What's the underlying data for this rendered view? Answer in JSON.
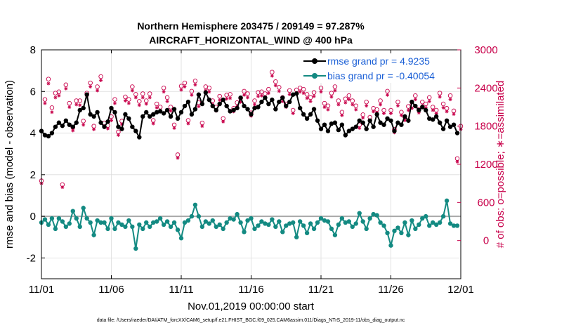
{
  "chart_data": {
    "type": "line",
    "title_line1": "Northern Hemisphere 203475 / 209149 = 97.287%",
    "title_line2": "AIRCRAFT_HORIZONTAL_WIND @ 400 hPa",
    "xlabel": "Nov.01,2019 00:00:00 start",
    "ylabel_left": "rmse and bias (model - observation)",
    "ylabel_right": "# of obs: o=possible; ∗=assimilated",
    "xlim": [
      0,
      30
    ],
    "ylim_left": [
      -3,
      8
    ],
    "ylim_right": [
      -600,
      3000
    ],
    "x_ticks": [
      {
        "value": 0,
        "label": "11/01"
      },
      {
        "value": 5,
        "label": "11/06"
      },
      {
        "value": 10,
        "label": "11/11"
      },
      {
        "value": 15,
        "label": "11/16"
      },
      {
        "value": 20,
        "label": "11/21"
      },
      {
        "value": 25,
        "label": "11/26"
      },
      {
        "value": 30,
        "label": "12/01"
      }
    ],
    "y_ticks_left": [
      -2,
      0,
      2,
      4,
      6,
      8
    ],
    "y_ticks_right": [
      0,
      600,
      1200,
      1800,
      2400,
      3000
    ],
    "footer": "data file: /Users/raeder/DAI/ATM_forcXX/CAM6_setup/f.e21.FHIST_BGC.f09_025.CAM6assim.011/Diags_NTrS_2019-11/obs_diag_output.nc",
    "colors": {
      "rmse": "#000000",
      "bias": "#138a82",
      "obs": "#c8004a",
      "zero_line": "#a9a9a9",
      "grid": "#dcdcdc",
      "legend_text": "#1a5fd6"
    },
    "series": [
      {
        "name": "rmse grand pr = 4.9235",
        "x": [
          0.0,
          0.25,
          0.5,
          0.75,
          1.0,
          1.25,
          1.5,
          1.75,
          2.0,
          2.25,
          2.5,
          2.75,
          3.0,
          3.25,
          3.5,
          3.75,
          4.0,
          4.25,
          4.5,
          4.75,
          5.0,
          5.25,
          5.5,
          5.75,
          6.0,
          6.25,
          6.5,
          6.75,
          7.0,
          7.25,
          7.5,
          7.75,
          8.0,
          8.25,
          8.5,
          8.75,
          9.0,
          9.25,
          9.5,
          9.75,
          10.0,
          10.25,
          10.5,
          10.75,
          11.0,
          11.25,
          11.5,
          11.75,
          12.0,
          12.25,
          12.5,
          12.75,
          13.0,
          13.25,
          13.5,
          13.75,
          14.0,
          14.25,
          14.5,
          14.75,
          15.0,
          15.25,
          15.5,
          15.75,
          16.0,
          16.25,
          16.5,
          16.75,
          17.0,
          17.25,
          17.5,
          17.75,
          18.0,
          18.25,
          18.5,
          18.75,
          19.0,
          19.25,
          19.5,
          19.75,
          20.0,
          20.25,
          20.5,
          20.75,
          21.0,
          21.25,
          21.5,
          21.75,
          22.0,
          22.25,
          22.5,
          22.75,
          23.0,
          23.25,
          23.5,
          23.75,
          24.0,
          24.25,
          24.5,
          24.75,
          25.0,
          25.25,
          25.5,
          25.75,
          26.0,
          26.25,
          26.5,
          26.75,
          27.0,
          27.25,
          27.5,
          27.75,
          28.0,
          28.25,
          28.5,
          28.75,
          29.0,
          29.25,
          29.5,
          29.75
        ],
        "values": [
          4.1,
          3.9,
          3.85,
          4.0,
          4.3,
          4.5,
          4.35,
          4.6,
          4.4,
          4.3,
          4.5,
          5.1,
          5.2,
          5.85,
          4.9,
          4.8,
          5.0,
          4.5,
          4.3,
          4.55,
          5.2,
          5.0,
          4.3,
          4.2,
          4.9,
          4.7,
          4.3,
          4.1,
          3.8,
          4.8,
          5.0,
          4.8,
          4.9,
          5.0,
          5.05,
          4.95,
          5.1,
          4.8,
          5.15,
          4.7,
          5.0,
          5.3,
          5.5,
          4.9,
          5.15,
          5.85,
          5.4,
          5.95,
          5.6,
          5.3,
          5.1,
          5.4,
          5.6,
          5.3,
          5.05,
          5.1,
          5.2,
          5.7,
          5.3,
          5.15,
          4.9,
          5.2,
          5.25,
          5.5,
          5.7,
          5.4,
          5.6,
          5.15,
          5.5,
          5.7,
          5.3,
          5.5,
          5.85,
          5.9,
          5.2,
          4.9,
          4.7,
          4.9,
          5.15,
          4.6,
          4.2,
          4.4,
          4.1,
          4.45,
          4.5,
          4.15,
          4.4,
          3.9,
          4.1,
          4.2,
          4.3,
          4.6,
          4.5,
          4.2,
          4.6,
          4.3,
          4.9,
          4.5,
          4.4,
          4.7,
          4.6,
          4.1,
          4.5,
          4.4,
          4.8,
          4.6,
          5.5,
          5.3,
          5.1,
          5.25,
          5.1,
          4.7,
          4.65,
          4.8,
          4.5,
          4.2,
          4.6,
          4.3,
          4.4,
          4.0
        ]
      },
      {
        "name": "bias grand pr = -0.40054",
        "x": [
          0.0,
          0.25,
          0.5,
          0.75,
          1.0,
          1.25,
          1.5,
          1.75,
          2.0,
          2.25,
          2.5,
          2.75,
          3.0,
          3.25,
          3.5,
          3.75,
          4.0,
          4.25,
          4.5,
          4.75,
          5.0,
          5.25,
          5.5,
          5.75,
          6.0,
          6.25,
          6.5,
          6.75,
          7.0,
          7.25,
          7.5,
          7.75,
          8.0,
          8.25,
          8.5,
          8.75,
          9.0,
          9.25,
          9.5,
          9.75,
          10.0,
          10.25,
          10.5,
          10.75,
          11.0,
          11.25,
          11.5,
          11.75,
          12.0,
          12.25,
          12.5,
          12.75,
          13.0,
          13.25,
          13.5,
          13.75,
          14.0,
          14.25,
          14.5,
          14.75,
          15.0,
          15.25,
          15.5,
          15.75,
          16.0,
          16.25,
          16.5,
          16.75,
          17.0,
          17.25,
          17.5,
          17.75,
          18.0,
          18.25,
          18.5,
          18.75,
          19.0,
          19.25,
          19.5,
          19.75,
          20.0,
          20.25,
          20.5,
          20.75,
          21.0,
          21.25,
          21.5,
          21.75,
          22.0,
          22.25,
          22.5,
          22.75,
          23.0,
          23.25,
          23.5,
          23.75,
          24.0,
          24.25,
          24.5,
          24.75,
          25.0,
          25.25,
          25.5,
          25.75,
          26.0,
          26.25,
          26.5,
          26.75,
          27.0,
          27.25,
          27.5,
          27.75,
          28.0,
          28.25,
          28.5,
          28.75,
          29.0,
          29.25,
          29.5,
          29.75
        ],
        "values": [
          -0.3,
          -0.15,
          -0.4,
          -0.1,
          -0.6,
          -0.1,
          -0.25,
          -0.5,
          -0.35,
          0.25,
          -0.1,
          -0.5,
          0.4,
          -0.1,
          -0.3,
          -0.9,
          -0.2,
          -0.3,
          -0.3,
          -0.6,
          -0.1,
          -0.6,
          -0.3,
          -0.4,
          -0.5,
          -0.2,
          -0.5,
          -1.55,
          -0.4,
          -0.6,
          -0.3,
          -0.5,
          -0.3,
          -0.25,
          -0.1,
          -0.4,
          -0.25,
          -0.5,
          -0.3,
          -0.65,
          -1.05,
          -0.3,
          -0.2,
          0.0,
          0.55,
          0.0,
          -0.5,
          -0.25,
          -0.35,
          -0.2,
          -0.5,
          -0.4,
          -0.6,
          -0.3,
          -0.1,
          -0.15,
          0.1,
          -0.3,
          -0.75,
          -0.2,
          -0.1,
          -0.6,
          -0.45,
          -0.25,
          -0.35,
          -0.4,
          -0.15,
          -0.5,
          -0.25,
          -0.75,
          -0.45,
          -0.35,
          -0.3,
          -1.0,
          -0.25,
          -0.45,
          -0.8,
          -0.35,
          -0.6,
          -0.3,
          -0.1,
          -0.2,
          -0.25,
          -0.6,
          -0.9,
          -0.4,
          -0.1,
          -0.3,
          -0.25,
          -0.5,
          -0.35,
          0.15,
          -0.25,
          -0.6,
          -0.1,
          0.1,
          0.05,
          -0.3,
          -0.45,
          -0.8,
          -1.4,
          -0.7,
          -0.55,
          -0.8,
          -0.3,
          -0.9,
          -0.2,
          -0.6,
          -0.4,
          -0.1,
          0.0,
          -0.45,
          -0.3,
          -0.4,
          -0.3,
          0.0,
          0.75,
          -0.35,
          -0.45,
          -0.45
        ]
      },
      {
        "name": "obs possible",
        "marker": "o",
        "x": [
          0.0,
          0.25,
          0.5,
          0.75,
          1.0,
          1.25,
          1.5,
          1.75,
          2.0,
          2.25,
          2.5,
          2.75,
          3.0,
          3.25,
          3.5,
          3.75,
          4.0,
          4.25,
          4.5,
          4.75,
          5.0,
          5.25,
          5.5,
          5.75,
          6.0,
          6.25,
          6.5,
          6.75,
          7.0,
          7.25,
          7.5,
          7.75,
          8.0,
          8.25,
          8.5,
          8.75,
          9.0,
          9.25,
          9.5,
          9.75,
          10.0,
          10.25,
          10.5,
          10.75,
          11.0,
          11.25,
          11.5,
          11.75,
          12.0,
          12.25,
          12.5,
          12.75,
          13.0,
          13.25,
          13.5,
          13.75,
          14.0,
          14.25,
          14.5,
          14.75,
          15.0,
          15.25,
          15.5,
          15.75,
          16.0,
          16.25,
          16.5,
          16.75,
          17.0,
          17.25,
          17.5,
          17.75,
          18.0,
          18.25,
          18.5,
          18.75,
          19.0,
          19.25,
          19.5,
          19.75,
          20.0,
          20.25,
          20.5,
          20.75,
          21.0,
          21.25,
          21.5,
          21.75,
          22.0,
          22.25,
          22.5,
          22.75,
          23.0,
          23.25,
          23.5,
          23.75,
          24.0,
          24.25,
          24.5,
          24.75,
          25.0,
          25.25,
          25.5,
          25.75,
          26.0,
          26.25,
          26.5,
          26.75,
          27.0,
          27.25,
          27.5,
          27.75,
          28.0,
          28.25,
          28.5,
          28.75,
          29.0,
          29.25,
          29.5,
          29.75,
          30.0
        ],
        "values": [
          940,
          2220,
          2540,
          2090,
          2320,
          2340,
          880,
          2450,
          2160,
          1780,
          2200,
          2200,
          1880,
          2320,
          2480,
          1800,
          2420,
          2580,
          1850,
          1810,
          1950,
          2220,
          1710,
          1880,
          2260,
          2220,
          2420,
          2300,
          2190,
          2310,
          2200,
          2310,
          1890,
          2150,
          2100,
          2400,
          2250,
          2100,
          1820,
          1350,
          2430,
          2480,
          1890,
          2350,
          2510,
          2170,
          1850,
          2420,
          2400,
          2200,
          2100,
          2270,
          1920,
          2290,
          2300,
          2080,
          2170,
          2240,
          2350,
          2310,
          2010,
          2200,
          2330,
          2340,
          2310,
          2380,
          2650,
          2500,
          2410,
          2250,
          2150,
          2360,
          2050,
          2370,
          2400,
          2380,
          2300,
          2250,
          2330,
          2610,
          2400,
          2160,
          2120,
          2320,
          2420,
          2200,
          2020,
          2230,
          2280,
          2200,
          2120,
          1820,
          1980,
          2180,
          1940,
          2080,
          2060,
          2200,
          2050,
          2350,
          2050,
          1750,
          2180,
          2020,
          1940,
          2110,
          2130,
          2280,
          2060,
          2180,
          2150,
          2250,
          2100,
          2050,
          2320,
          2150,
          2080,
          2280,
          2040,
          1290,
          1800
        ]
      },
      {
        "name": "obs assimilated",
        "marker": "*",
        "x": [
          0.0,
          0.25,
          0.5,
          0.75,
          1.0,
          1.25,
          1.5,
          1.75,
          2.0,
          2.25,
          2.5,
          2.75,
          3.0,
          3.25,
          3.5,
          3.75,
          4.0,
          4.25,
          4.5,
          4.75,
          5.0,
          5.25,
          5.5,
          5.75,
          6.0,
          6.25,
          6.5,
          6.75,
          7.0,
          7.25,
          7.5,
          7.75,
          8.0,
          8.25,
          8.5,
          8.75,
          9.0,
          9.25,
          9.5,
          9.75,
          10.0,
          10.25,
          10.5,
          10.75,
          11.0,
          11.25,
          11.5,
          11.75,
          12.0,
          12.25,
          12.5,
          12.75,
          13.0,
          13.25,
          13.5,
          13.75,
          14.0,
          14.25,
          14.5,
          14.75,
          15.0,
          15.25,
          15.5,
          15.75,
          16.0,
          16.25,
          16.5,
          16.75,
          17.0,
          17.25,
          17.5,
          17.75,
          18.0,
          18.25,
          18.5,
          18.75,
          19.0,
          19.25,
          19.5,
          19.75,
          20.0,
          20.25,
          20.5,
          20.75,
          21.0,
          21.25,
          21.5,
          21.75,
          22.0,
          22.25,
          22.5,
          22.75,
          23.0,
          23.25,
          23.5,
          23.75,
          24.0,
          24.25,
          24.5,
          24.75,
          25.0,
          25.25,
          25.5,
          25.75,
          26.0,
          26.25,
          26.5,
          26.75,
          27.0,
          27.25,
          27.5,
          27.75,
          28.0,
          28.25,
          28.5,
          28.75,
          29.0,
          29.25,
          29.5,
          29.75,
          30.0
        ],
        "values": [
          900,
          2160,
          2470,
          2020,
          2250,
          2280,
          840,
          2390,
          2100,
          1730,
          2140,
          2130,
          1820,
          2270,
          2420,
          1750,
          2360,
          2520,
          1800,
          1760,
          1890,
          2160,
          1660,
          1830,
          2200,
          2160,
          2360,
          2250,
          2130,
          2250,
          2150,
          2250,
          1840,
          2090,
          2040,
          2340,
          2190,
          2040,
          1770,
          1300,
          2370,
          2420,
          1840,
          2290,
          2450,
          2110,
          1800,
          2360,
          2340,
          2140,
          2040,
          2210,
          1870,
          2230,
          2240,
          2030,
          2110,
          2180,
          2290,
          2250,
          1960,
          2140,
          2270,
          2280,
          2250,
          2320,
          2590,
          2440,
          2350,
          2190,
          2100,
          2300,
          2000,
          2310,
          2340,
          2320,
          2240,
          2190,
          2270,
          2550,
          2340,
          2100,
          2060,
          2260,
          2360,
          2140,
          1970,
          2170,
          2220,
          2140,
          2060,
          1770,
          1930,
          2120,
          1890,
          2030,
          2010,
          2140,
          2000,
          2290,
          2000,
          1700,
          2120,
          1970,
          1890,
          2050,
          2080,
          2220,
          2010,
          2120,
          2090,
          2190,
          2050,
          2000,
          2260,
          2090,
          2030,
          2220,
          1990,
          1240,
          1750
        ]
      }
    ]
  }
}
